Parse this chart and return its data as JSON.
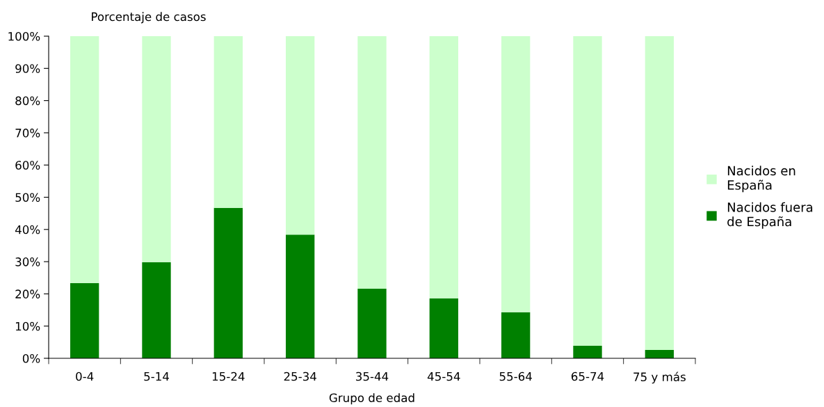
{
  "chart_data": {
    "type": "bar",
    "stacked": true,
    "ylabel": "Porcentaje de casos",
    "xlabel": "Grupo de edad",
    "categories": [
      "0-4",
      "5-14",
      "15-24",
      "25-34",
      "35-44",
      "45-54",
      "55-64",
      "65-74",
      "75 y más"
    ],
    "series": [
      {
        "name": "Nacidos fuera\nde España",
        "color": "#008000",
        "values": [
          23.3,
          29.8,
          46.7,
          38.4,
          21.6,
          18.6,
          14.3,
          3.9,
          2.6
        ]
      },
      {
        "name": "Nacidos en\nEspaña",
        "color": "#ccffcc",
        "values": [
          76.7,
          70.2,
          53.3,
          61.6,
          78.4,
          81.4,
          85.7,
          96.1,
          97.4
        ]
      }
    ],
    "ylim": [
      0,
      100
    ],
    "yticks": [
      {
        "value": 0,
        "label": "0%"
      },
      {
        "value": 10,
        "label": "10%"
      },
      {
        "value": 20,
        "label": "20%"
      },
      {
        "value": 30,
        "label": "30%"
      },
      {
        "value": 40,
        "label": "40%"
      },
      {
        "value": 50,
        "label": "50%"
      },
      {
        "value": 60,
        "label": "60%"
      },
      {
        "value": 70,
        "label": "70%"
      },
      {
        "value": 80,
        "label": "80%"
      },
      {
        "value": 90,
        "label": "90%"
      },
      {
        "value": 100,
        "label": "100%"
      }
    ],
    "grid": false,
    "legend": "right"
  }
}
